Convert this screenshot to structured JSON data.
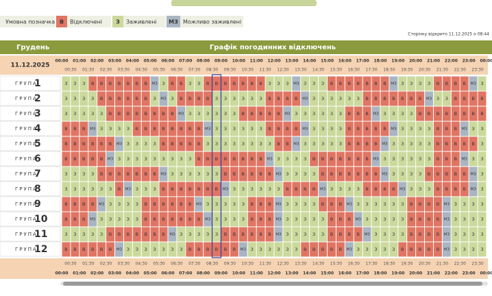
{
  "legend": {
    "title": "Умовна позначка",
    "items": [
      {
        "code": "В",
        "label": "Відключені"
      },
      {
        "code": "З",
        "label": "Заживлені"
      },
      {
        "code": "МЗ",
        "label": "Можливо заживлені"
      }
    ]
  },
  "opened": "Сторінку відкрито 11.12.2025 о 08:44",
  "header": {
    "month": "Грудень",
    "title": "Графік погодинних відключень"
  },
  "date": "11.12.2025",
  "hours": [
    "00:00",
    "01:00",
    "02:00",
    "03:00",
    "04:00",
    "05:00",
    "06:00",
    "07:00",
    "08:00",
    "09:00",
    "10:00",
    "11:00",
    "12:00",
    "13:00",
    "14:00",
    "15:00",
    "16:00",
    "17:00",
    "18:00",
    "19:00",
    "20:00",
    "21:00",
    "22:00",
    "23:00",
    "00:00"
  ],
  "halves": [
    "00:30",
    "01:30",
    "02:30",
    "03:30",
    "04:30",
    "05:30",
    "06:30",
    "07:30",
    "08:30",
    "09:30",
    "10:30",
    "11:30",
    "12:30",
    "13:30",
    "14:30",
    "15:30",
    "16:30",
    "17:30",
    "18:30",
    "19:30",
    "20:30",
    "21:30",
    "22:30",
    "23:30"
  ],
  "groups": [
    {
      "label": "ГРУПА",
      "number": 1,
      "cells": [
        "З",
        "З",
        "З",
        "В",
        "В",
        "В",
        "В",
        "В",
        "В",
        "В",
        "МЗ",
        "З",
        "В",
        "В",
        "З",
        "З",
        "В",
        "В",
        "В",
        "В",
        "В",
        "В",
        "В",
        "З",
        "З",
        "З",
        "МЗ",
        "З",
        "З",
        "З",
        "В",
        "В",
        "В",
        "В",
        "В",
        "В",
        "В",
        "МЗ",
        "З",
        "З",
        "З",
        "З",
        "В",
        "В",
        "В",
        "В",
        "МЗ",
        "З"
      ]
    },
    {
      "label": "ГРУПА",
      "number": 2,
      "cells": [
        "З",
        "З",
        "З",
        "З",
        "В",
        "В",
        "В",
        "В",
        "В",
        "В",
        "З",
        "МЗ",
        "З",
        "В",
        "В",
        "В",
        "В",
        "З",
        "З",
        "З",
        "З",
        "З",
        "З",
        "В",
        "В",
        "В",
        "В",
        "МЗ",
        "З",
        "З",
        "З",
        "З",
        "З",
        "З",
        "В",
        "В",
        "В",
        "В",
        "В",
        "В",
        "В",
        "МЗ",
        "З",
        "З",
        "В",
        "В",
        "В",
        "В"
      ]
    },
    {
      "label": "ГРУПА",
      "number": 3,
      "cells": [
        "З",
        "З",
        "З",
        "З",
        "З",
        "В",
        "В",
        "В",
        "В",
        "В",
        "В",
        "В",
        "В",
        "МЗ",
        "З",
        "З",
        "З",
        "З",
        "З",
        "З",
        "В",
        "В",
        "В",
        "В",
        "В",
        "МЗ",
        "З",
        "З",
        "З",
        "З",
        "З",
        "З",
        "В",
        "В",
        "В",
        "МЗ",
        "З",
        "З",
        "З",
        "З",
        "В",
        "В",
        "В",
        "В",
        "В",
        "В",
        "В",
        "В"
      ]
    },
    {
      "label": "ГРУПА",
      "number": 4,
      "cells": [
        "В",
        "В",
        "В",
        "МЗ",
        "З",
        "З",
        "З",
        "З",
        "В",
        "В",
        "В",
        "В",
        "В",
        "В",
        "В",
        "В",
        "МЗ",
        "З",
        "З",
        "З",
        "З",
        "З",
        "З",
        "В",
        "В",
        "В",
        "В",
        "МЗ",
        "З",
        "З",
        "З",
        "З",
        "В",
        "В",
        "В",
        "В",
        "В",
        "МЗ",
        "З",
        "З",
        "З",
        "З",
        "В",
        "В",
        "В",
        "МЗ",
        "З",
        "З"
      ]
    },
    {
      "label": "ГРУПА",
      "number": 5,
      "cells": [
        "В",
        "В",
        "В",
        "В",
        "В",
        "В",
        "МЗ",
        "З",
        "З",
        "З",
        "З",
        "В",
        "В",
        "В",
        "В",
        "В",
        "З",
        "З",
        "З",
        "З",
        "З",
        "З",
        "З",
        "З",
        "В",
        "В",
        "МЗ",
        "З",
        "З",
        "З",
        "З",
        "З",
        "В",
        "В",
        "В",
        "В",
        "МЗ",
        "З",
        "З",
        "З",
        "З",
        "З",
        "В",
        "В",
        "В",
        "В",
        "В",
        "З"
      ]
    },
    {
      "label": "ГРУПА",
      "number": 6,
      "cells": [
        "В",
        "В",
        "В",
        "В",
        "В",
        "МЗ",
        "З",
        "З",
        "З",
        "З",
        "З",
        "З",
        "З",
        "З",
        "З",
        "В",
        "В",
        "В",
        "В",
        "В",
        "В",
        "В",
        "В",
        "МЗ",
        "З",
        "З",
        "З",
        "З",
        "В",
        "В",
        "В",
        "В",
        "В",
        "В",
        "В",
        "МЗ",
        "З",
        "З",
        "З",
        "З",
        "З",
        "З",
        "В",
        "В",
        "В",
        "МЗ",
        "З",
        "З"
      ]
    },
    {
      "label": "ГРУПА",
      "number": 7,
      "cells": [
        "З",
        "З",
        "З",
        "З",
        "В",
        "В",
        "В",
        "В",
        "В",
        "В",
        "В",
        "МЗ",
        "З",
        "З",
        "З",
        "З",
        "З",
        "З",
        "В",
        "В",
        "В",
        "В",
        "В",
        "В",
        "МЗ",
        "З",
        "З",
        "З",
        "З",
        "В",
        "В",
        "В",
        "В",
        "В",
        "В",
        "В",
        "МЗ",
        "З",
        "З",
        "З",
        "З",
        "В",
        "В",
        "В",
        "В",
        "В",
        "МЗ",
        "З"
      ]
    },
    {
      "label": "ГРУПА",
      "number": 8,
      "cells": [
        "З",
        "З",
        "З",
        "З",
        "З",
        "З",
        "В",
        "МЗ",
        "З",
        "З",
        "З",
        "В",
        "В",
        "В",
        "В",
        "В",
        "В",
        "В",
        "МЗ",
        "З",
        "З",
        "З",
        "З",
        "З",
        "З",
        "В",
        "В",
        "В",
        "В",
        "МЗ",
        "З",
        "З",
        "З",
        "З",
        "В",
        "В",
        "В",
        "В",
        "МЗ",
        "З",
        "З",
        "З",
        "В",
        "В",
        "В",
        "В",
        "МЗ",
        "З"
      ]
    },
    {
      "label": "ГРУПА",
      "number": 9,
      "cells": [
        "В",
        "В",
        "В",
        "В",
        "МЗ",
        "З",
        "З",
        "З",
        "З",
        "В",
        "В",
        "В",
        "В",
        "В",
        "В",
        "МЗ",
        "З",
        "З",
        "З",
        "З",
        "З",
        "В",
        "В",
        "В",
        "МЗ",
        "З",
        "З",
        "З",
        "З",
        "В",
        "В",
        "В",
        "МЗ",
        "З",
        "З",
        "З",
        "З",
        "З",
        "З",
        "В",
        "В",
        "В",
        "В",
        "МЗ",
        "З",
        "З",
        "З",
        "З"
      ]
    },
    {
      "label": "ГРУПА",
      "number": 10,
      "cells": [
        "В",
        "В",
        "В",
        "МЗ",
        "З",
        "З",
        "З",
        "З",
        "З",
        "В",
        "В",
        "В",
        "В",
        "В",
        "В",
        "В",
        "МЗ",
        "З",
        "З",
        "З",
        "З",
        "В",
        "В",
        "В",
        "МЗ",
        "З",
        "З",
        "З",
        "З",
        "З",
        "В",
        "В",
        "В",
        "МЗ",
        "З",
        "З",
        "З",
        "З",
        "З",
        "В",
        "В",
        "В",
        "В",
        "МЗ",
        "З",
        "З",
        "З",
        "З"
      ]
    },
    {
      "label": "ГРУПА",
      "number": 11,
      "cells": [
        "З",
        "З",
        "З",
        "З",
        "З",
        "В",
        "В",
        "В",
        "В",
        "В",
        "В",
        "В",
        "МЗ",
        "З",
        "З",
        "З",
        "З",
        "З",
        "В",
        "В",
        "В",
        "В",
        "В",
        "В",
        "МЗ",
        "З",
        "З",
        "З",
        "З",
        "З",
        "В",
        "В",
        "В",
        "В",
        "МЗ",
        "З",
        "З",
        "З",
        "З",
        "В",
        "В",
        "В",
        "В",
        "МЗ",
        "З",
        "З",
        "З",
        "З"
      ]
    },
    {
      "label": "ГРУПА",
      "number": 12,
      "cells": [
        "В",
        "В",
        "В",
        "В",
        "В",
        "В",
        "МЗ",
        "З",
        "З",
        "З",
        "З",
        "З",
        "З",
        "З",
        "В",
        "В",
        "В",
        "В",
        "В",
        "В",
        "МЗ",
        "З",
        "З",
        "З",
        "З",
        "З",
        "З",
        "В",
        "В",
        "В",
        "В",
        "В",
        "МЗ",
        "З",
        "З",
        "З",
        "З",
        "З",
        "В",
        "В",
        "В",
        "В",
        "В",
        "МЗ",
        "З",
        "З",
        "З",
        "З"
      ]
    }
  ]
}
